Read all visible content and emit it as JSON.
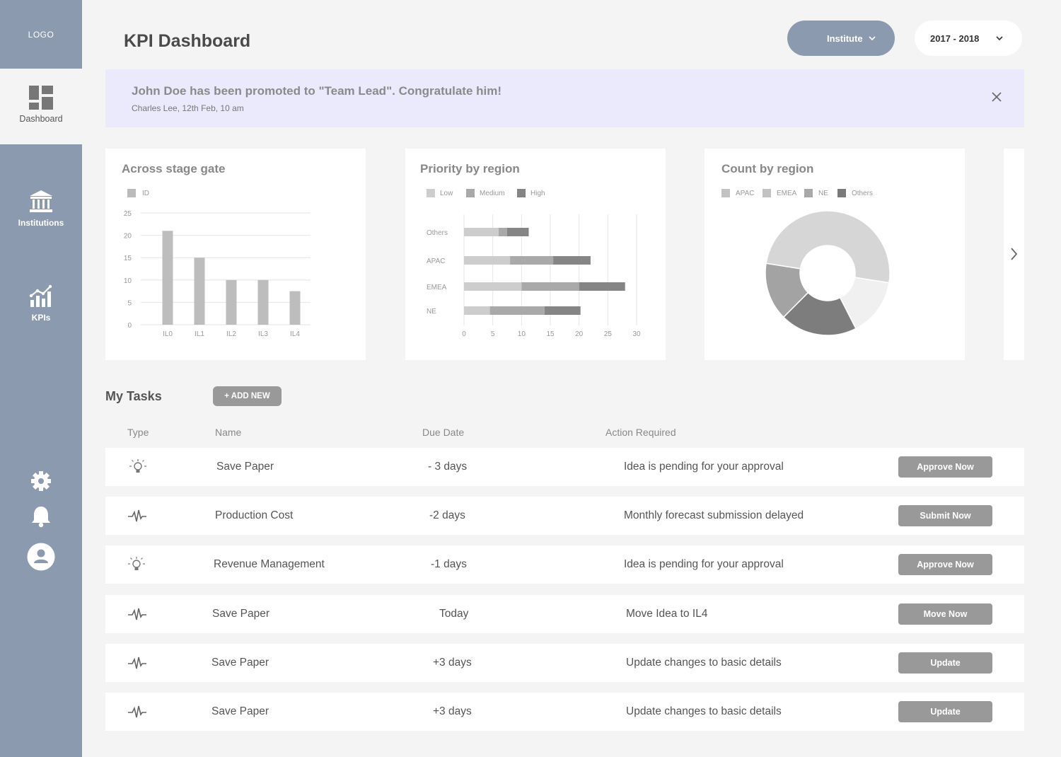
{
  "sidebar": {
    "logo": "LOGO",
    "items": [
      {
        "label": "Dashboard",
        "icon": "dashboard-icon"
      },
      {
        "label": "Institutions",
        "icon": "institution-icon"
      },
      {
        "label": "KPIs",
        "icon": "kpi-chart-icon"
      }
    ],
    "bottom_icons": [
      "gear-icon",
      "bell-icon",
      "user-avatar-icon"
    ]
  },
  "header": {
    "title": "KPI Dashboard",
    "institute_dropdown": "Institute",
    "year_dropdown": "2017 - 2018"
  },
  "notification": {
    "title": "John Doe has been promoted to \"Team Lead\". Congratulate him!",
    "subtitle": "Charles Lee, 12th Feb, 10 am"
  },
  "colors": {
    "sidebar": "#8c9ab0",
    "notice_bg": "#eaeafc",
    "button_gray": "#999999",
    "page_bg": "#f4f4f4"
  },
  "chart_data": [
    {
      "type": "bar",
      "title": "Across stage gate",
      "legend": [
        "ID"
      ],
      "categories": [
        "IL0",
        "IL1",
        "IL2",
        "IL3",
        "IL4"
      ],
      "values": [
        21,
        15,
        10,
        10,
        7.5
      ],
      "ylim": [
        0,
        25
      ],
      "yticks": [
        0,
        5,
        10,
        15,
        20,
        25
      ],
      "color": "#bdbdbd"
    },
    {
      "type": "bar",
      "orientation": "horizontal",
      "stacked": true,
      "title": "Priority by region",
      "categories": [
        "Others",
        "APAC",
        "EMEA",
        "NE"
      ],
      "series": [
        {
          "name": "Low",
          "values": [
            6,
            8,
            10,
            4.5
          ],
          "color": "#cdcdcd"
        },
        {
          "name": "Medium",
          "values": [
            1.5,
            7.5,
            10,
            9.5
          ],
          "color": "#a9a9a9"
        },
        {
          "name": "High",
          "values": [
            3.75,
            6.5,
            8,
            6.25
          ],
          "color": "#858585"
        }
      ],
      "xlim": [
        0,
        30
      ],
      "xticks": [
        0,
        5,
        10,
        15,
        20,
        25,
        30
      ]
    },
    {
      "type": "pie",
      "donut": true,
      "title": "Count by region",
      "legend": [
        "APAC",
        "EMEA",
        "NE",
        "Others"
      ],
      "values": [
        50,
        15,
        20,
        15
      ],
      "colors": [
        "#d6d6d6",
        "#f0f0f0",
        "#7d7d7d",
        "#a3a3a3"
      ]
    }
  ],
  "tasks": {
    "title": "My Tasks",
    "add_label": "+ ADD NEW",
    "headers": {
      "type": "Type",
      "name": "Name",
      "due": "Due Date",
      "action": "Action Required"
    },
    "rows": [
      {
        "type": "idea-bulb-icon",
        "name": "Save Paper",
        "due": "- 3 days",
        "action": "Idea is pending for your approval",
        "button": "Approve Now"
      },
      {
        "type": "pulse-icon",
        "name": "Production Cost",
        "due": "-2 days",
        "action": "Monthly forecast submission delayed",
        "button": "Submit Now"
      },
      {
        "type": "idea-bulb-icon",
        "name": "Revenue Management",
        "due": "-1 days",
        "action": "Idea is pending for your approval",
        "button": "Approve Now"
      },
      {
        "type": "pulse-icon",
        "name": "Save Paper",
        "due": "Today",
        "action": "Move Idea to IL4",
        "button": "Move Now"
      },
      {
        "type": "pulse-icon",
        "name": "Save Paper",
        "due": "+3 days",
        "action": "Update changes to basic details",
        "button": "Update"
      },
      {
        "type": "pulse-icon",
        "name": "Save Paper",
        "due": "+3 days",
        "action": "Update changes to basic details",
        "button": "Update"
      }
    ]
  }
}
